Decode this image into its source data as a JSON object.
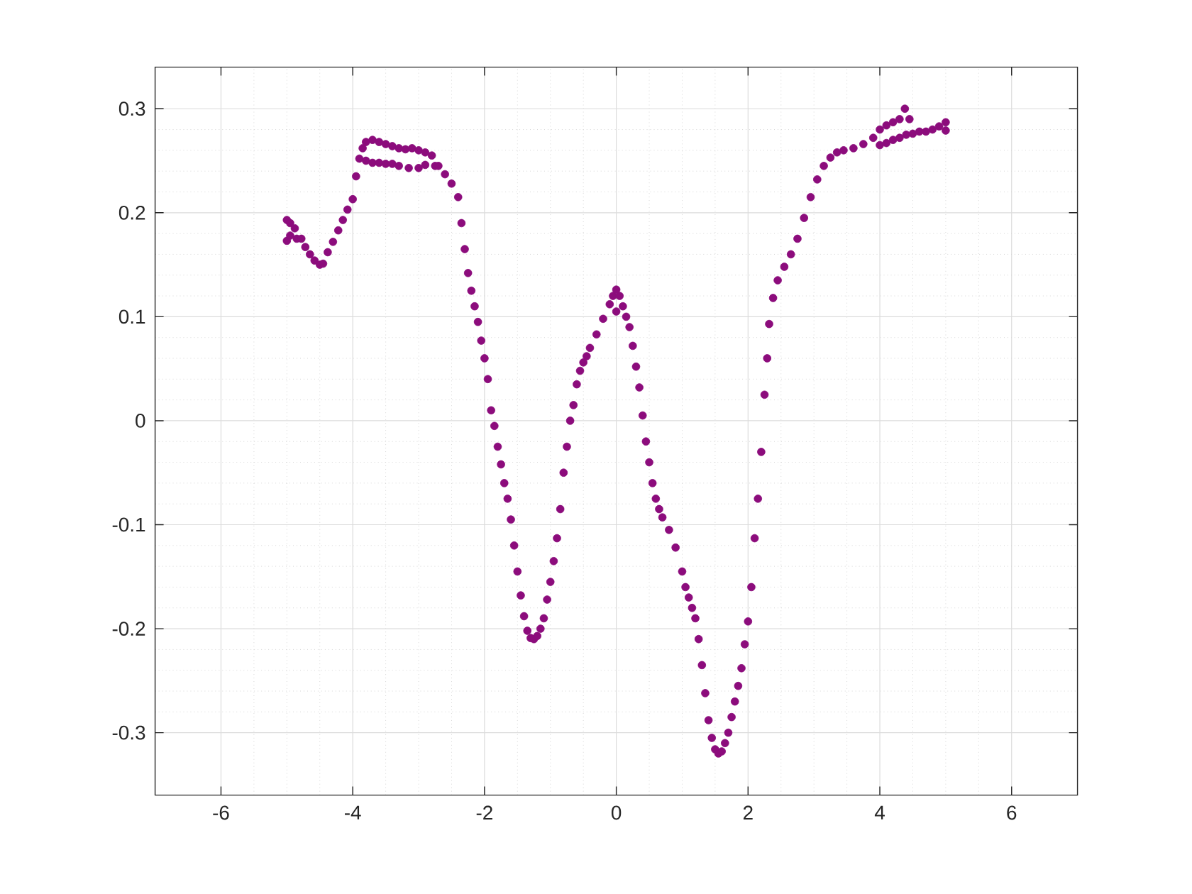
{
  "chart_data": {
    "type": "scatter",
    "color": "#8c0c7c",
    "marker": "circle",
    "grid": true,
    "xlim": [
      -7,
      7
    ],
    "ylim": [
      -0.36,
      0.34
    ],
    "xticks": [
      -6,
      -4,
      -2,
      0,
      2,
      4,
      6
    ],
    "yticks": [
      -0.3,
      -0.2,
      -0.1,
      0,
      0.1,
      0.2,
      0.3
    ],
    "x": [
      -5.0,
      -5.0,
      -4.95,
      -4.95,
      -4.88,
      -4.85,
      -4.78,
      -4.72,
      -4.65,
      -4.58,
      -4.5,
      -4.45,
      -4.38,
      -4.3,
      -4.22,
      -4.15,
      -4.08,
      -4.0,
      -3.95,
      -3.9,
      -3.85,
      -3.8,
      -3.8,
      -3.7,
      -3.7,
      -3.6,
      -3.6,
      -3.5,
      -3.5,
      -3.4,
      -3.4,
      -3.3,
      -3.3,
      -3.2,
      -3.15,
      -3.1,
      -3.0,
      -3.0,
      -2.9,
      -2.9,
      -2.8,
      -2.75,
      -2.7,
      -2.6,
      -2.5,
      -2.4,
      -2.35,
      -2.3,
      -2.25,
      -2.2,
      -2.15,
      -2.1,
      -2.05,
      -2.0,
      -1.95,
      -1.9,
      -1.85,
      -1.8,
      -1.75,
      -1.7,
      -1.65,
      -1.6,
      -1.55,
      -1.5,
      -1.45,
      -1.4,
      -1.35,
      -1.3,
      -1.25,
      -1.2,
      -1.15,
      -1.1,
      -1.05,
      -1.0,
      -0.95,
      -0.9,
      -0.85,
      -0.8,
      -0.75,
      -0.7,
      -0.65,
      -0.6,
      -0.55,
      -0.5,
      -0.45,
      -0.4,
      -0.3,
      -0.2,
      -0.1,
      -0.05,
      0.0,
      0.0,
      0.05,
      0.1,
      0.15,
      0.2,
      0.25,
      0.3,
      0.35,
      0.4,
      0.45,
      0.5,
      0.55,
      0.6,
      0.65,
      0.7,
      0.8,
      0.9,
      1.0,
      1.05,
      1.1,
      1.15,
      1.2,
      1.25,
      1.3,
      1.35,
      1.4,
      1.45,
      1.5,
      1.55,
      1.6,
      1.65,
      1.7,
      1.75,
      1.8,
      1.85,
      1.9,
      1.95,
      2.0,
      2.05,
      2.1,
      2.15,
      2.2,
      2.25,
      2.29,
      2.32,
      2.38,
      2.45,
      2.55,
      2.65,
      2.75,
      2.85,
      2.95,
      3.05,
      3.15,
      3.25,
      3.35,
      3.45,
      3.6,
      3.75,
      3.9,
      4.0,
      4.0,
      4.1,
      4.1,
      4.2,
      4.2,
      4.3,
      4.3,
      4.38,
      4.4,
      4.45,
      4.5,
      4.6,
      4.7,
      4.8,
      4.9,
      5.0,
      5.0
    ],
    "values": [
      0.193,
      0.173,
      0.19,
      0.178,
      0.185,
      0.175,
      0.175,
      0.167,
      0.16,
      0.154,
      0.15,
      0.151,
      0.162,
      0.172,
      0.183,
      0.193,
      0.203,
      0.213,
      0.235,
      0.252,
      0.262,
      0.268,
      0.25,
      0.27,
      0.248,
      0.268,
      0.248,
      0.266,
      0.247,
      0.264,
      0.247,
      0.262,
      0.245,
      0.261,
      0.243,
      0.262,
      0.26,
      0.243,
      0.258,
      0.246,
      0.255,
      0.245,
      0.245,
      0.237,
      0.228,
      0.215,
      0.19,
      0.165,
      0.142,
      0.125,
      0.11,
      0.095,
      0.077,
      0.06,
      0.04,
      0.01,
      -0.005,
      -0.025,
      -0.042,
      -0.06,
      -0.075,
      -0.095,
      -0.12,
      -0.145,
      -0.168,
      -0.188,
      -0.202,
      -0.209,
      -0.21,
      -0.207,
      -0.2,
      -0.19,
      -0.172,
      -0.155,
      -0.135,
      -0.113,
      -0.085,
      -0.05,
      -0.025,
      0.0,
      0.015,
      0.035,
      0.048,
      0.056,
      0.062,
      0.07,
      0.083,
      0.098,
      0.112,
      0.12,
      0.126,
      0.105,
      0.12,
      0.11,
      0.1,
      0.09,
      0.072,
      0.052,
      0.032,
      0.005,
      -0.02,
      -0.04,
      -0.06,
      -0.075,
      -0.085,
      -0.093,
      -0.105,
      -0.122,
      -0.145,
      -0.16,
      -0.17,
      -0.18,
      -0.19,
      -0.21,
      -0.235,
      -0.262,
      -0.288,
      -0.305,
      -0.316,
      -0.32,
      -0.318,
      -0.31,
      -0.3,
      -0.285,
      -0.27,
      -0.255,
      -0.238,
      -0.215,
      -0.193,
      -0.16,
      -0.113,
      -0.075,
      -0.03,
      0.025,
      0.06,
      0.093,
      0.118,
      0.135,
      0.148,
      0.16,
      0.175,
      0.195,
      0.215,
      0.232,
      0.245,
      0.253,
      0.258,
      0.26,
      0.262,
      0.266,
      0.272,
      0.28,
      0.265,
      0.284,
      0.267,
      0.287,
      0.27,
      0.29,
      0.272,
      0.3,
      0.275,
      0.29,
      0.276,
      0.278,
      0.278,
      0.28,
      0.283,
      0.287,
      0.279
    ]
  }
}
